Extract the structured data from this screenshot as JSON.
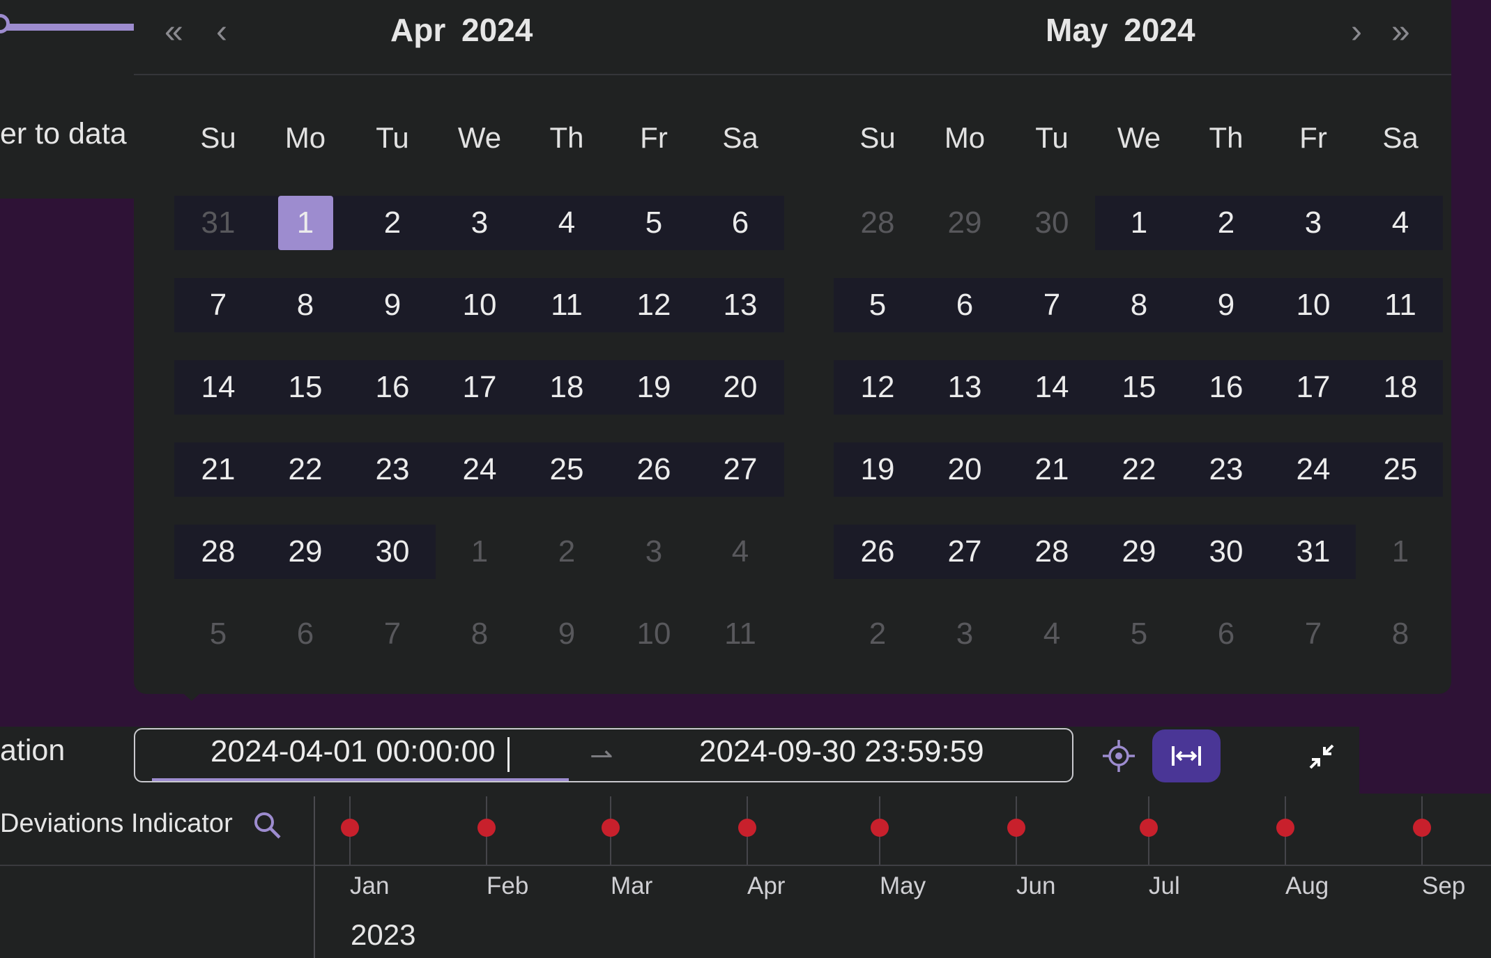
{
  "slider": {},
  "truncated_label": "er to data",
  "duration_label": "ation",
  "range": {
    "start": "2024-04-01 00:00:00",
    "separator": "⇀",
    "end": "2024-09-30 23:59:59"
  },
  "timeline": {
    "row_label": "Deviations Indicator",
    "months": [
      "Jan",
      "Feb",
      "Mar",
      "Apr",
      "May",
      "Jun",
      "Jul",
      "Aug",
      "Sep"
    ],
    "year": "2023"
  },
  "calendar": {
    "left": {
      "month": "Apr",
      "year": "2024"
    },
    "right": {
      "month": "May",
      "year": "2024"
    },
    "weekdays": [
      "Su",
      "Mo",
      "Tu",
      "We",
      "Th",
      "Fr",
      "Sa"
    ],
    "nav": {
      "prev_year": "«",
      "prev_month": "‹",
      "next_month": "›",
      "next_year": "»"
    },
    "left_days": [
      [
        "31",
        "1",
        "2",
        "3",
        "4",
        "5",
        "6"
      ],
      [
        "7",
        "8",
        "9",
        "10",
        "11",
        "12",
        "13"
      ],
      [
        "14",
        "15",
        "16",
        "17",
        "18",
        "19",
        "20"
      ],
      [
        "21",
        "22",
        "23",
        "24",
        "25",
        "26",
        "27"
      ],
      [
        "28",
        "29",
        "30",
        "1",
        "2",
        "3",
        "4"
      ],
      [
        "5",
        "6",
        "7",
        "8",
        "9",
        "10",
        "11"
      ]
    ],
    "right_days": [
      [
        "28",
        "29",
        "30",
        "1",
        "2",
        "3",
        "4"
      ],
      [
        "5",
        "6",
        "7",
        "8",
        "9",
        "10",
        "11"
      ],
      [
        "12",
        "13",
        "14",
        "15",
        "16",
        "17",
        "18"
      ],
      [
        "19",
        "20",
        "21",
        "22",
        "23",
        "24",
        "25"
      ],
      [
        "26",
        "27",
        "28",
        "29",
        "30",
        "31",
        "1"
      ],
      [
        "2",
        "3",
        "4",
        "5",
        "6",
        "7",
        "8"
      ]
    ],
    "selected_day": "1",
    "accent": "#9d8ccf",
    "marker_color": "#c8202c"
  }
}
